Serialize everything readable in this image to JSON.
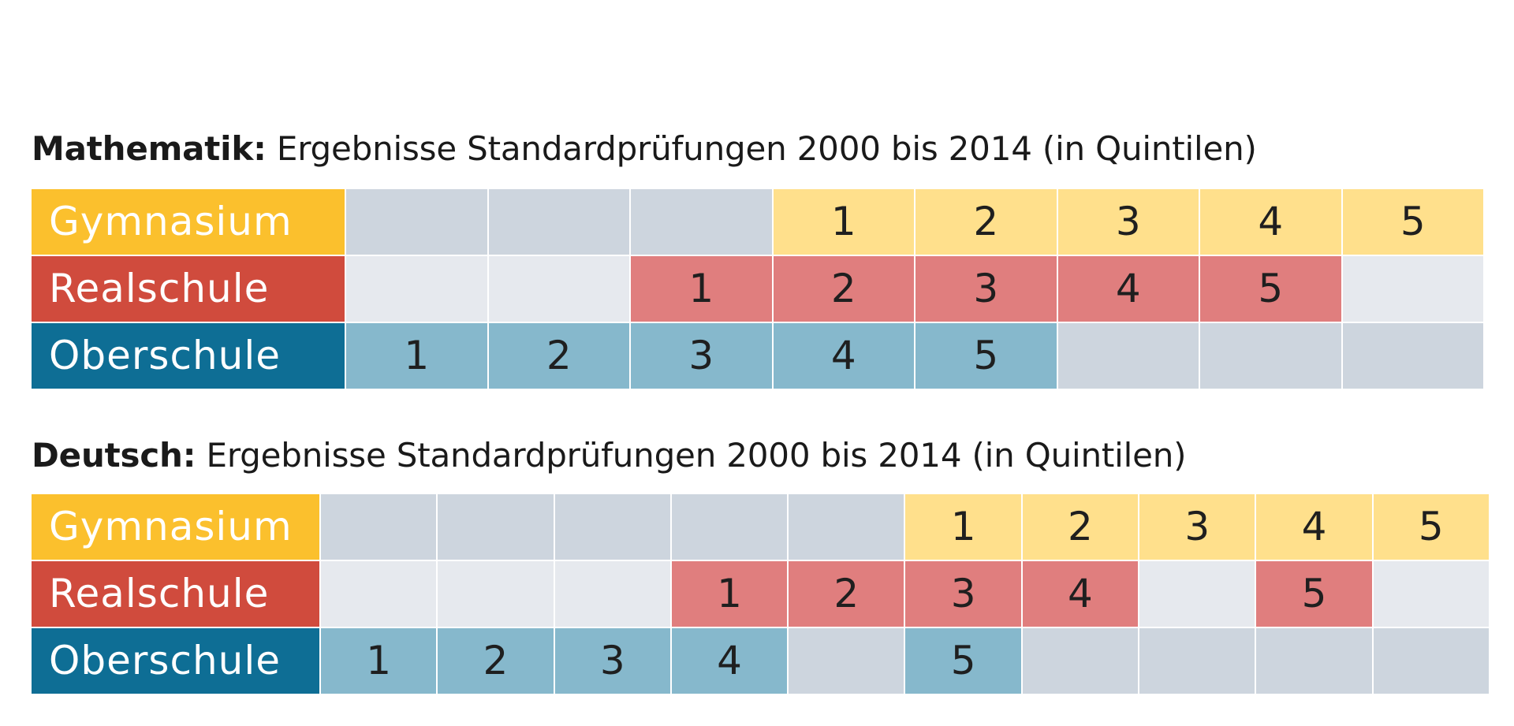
{
  "colors": {
    "gymnasium_label": "#FBC02D",
    "gymnasium_fill": "#FFE08C",
    "realschule_label": "#D04B3D",
    "realschule_fill": "#E07E7E",
    "oberschule_label": "#0E6E95",
    "oberschule_fill": "#86B8CC",
    "empty_dark": "#CDD5DE",
    "empty_light": "#E6E9EE"
  },
  "chart_data": [
    {
      "type": "table",
      "title_bold": "Mathematik:",
      "title": "Ergebnisse Standardprüfungen 2000 bis 2014 (in Quintilen)",
      "columns": 8,
      "rows": [
        {
          "name": "Gymnasium",
          "row_type": "gymnasium",
          "values": [
            null,
            null,
            null,
            "1",
            "2",
            "3",
            "4",
            "5"
          ]
        },
        {
          "name": "Realschule",
          "row_type": "realschule",
          "values": [
            null,
            null,
            "1",
            "2",
            "3",
            "4",
            "5",
            null
          ]
        },
        {
          "name": "Oberschule",
          "row_type": "oberschule",
          "values": [
            "1",
            "2",
            "3",
            "4",
            "5",
            null,
            null,
            null
          ]
        }
      ]
    },
    {
      "type": "table",
      "title_bold": "Deutsch:",
      "title": "Ergebnisse Standardprüfungen 2000 bis 2014 (in Quintilen)",
      "columns": 10,
      "rows": [
        {
          "name": "Gymnasium",
          "row_type": "gymnasium",
          "values": [
            null,
            null,
            null,
            null,
            null,
            "1",
            "2",
            "3",
            "4",
            "5"
          ]
        },
        {
          "name": "Realschule",
          "row_type": "realschule",
          "values": [
            null,
            null,
            null,
            "1",
            "2",
            "3",
            "4",
            null,
            "5",
            null
          ]
        },
        {
          "name": "Oberschule",
          "row_type": "oberschule",
          "values": [
            "1",
            "2",
            "3",
            "4",
            null,
            "5",
            null,
            null,
            null,
            null
          ]
        }
      ]
    }
  ]
}
